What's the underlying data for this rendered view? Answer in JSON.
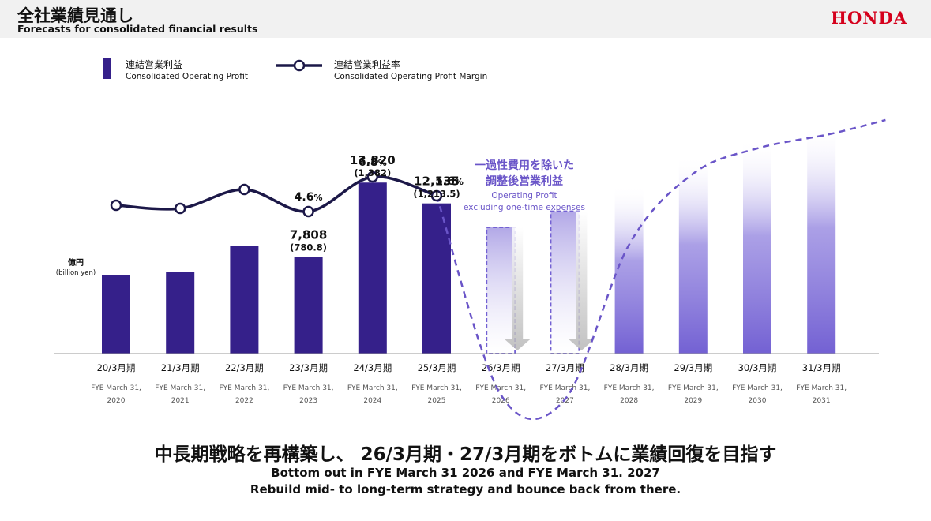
{
  "header": {
    "title_ja": "全社業績見通し",
    "title_en": "Forecasts for consolidated financial results",
    "logo": "HONDA"
  },
  "colors": {
    "bar_actual": "#35208a",
    "bar_future": "#7361d3",
    "line": "#1c1848",
    "annotation": "#6a55c8",
    "logo": "#d5001c"
  },
  "chart_data": {
    "type": "bar",
    "title": "全社業績見通し",
    "unit_label": "億円",
    "unit_label_en": "(billion yen)",
    "legend": {
      "bar_label_ja": "連結営業利益",
      "bar_label_en": "Consolidated Operating Profit",
      "line_label_ja": "連結営業利益率",
      "line_label_en": "Consolidated Operating Profit Margin"
    },
    "categories": [
      {
        "ja": "20/3月期",
        "en1": "FYE March 31,",
        "en2": "2020"
      },
      {
        "ja": "21/3月期",
        "en1": "FYE March 31,",
        "en2": "2021"
      },
      {
        "ja": "22/3月期",
        "en1": "FYE March 31,",
        "en2": "2022"
      },
      {
        "ja": "23/3月期",
        "en1": "FYE March 31,",
        "en2": "2023"
      },
      {
        "ja": "24/3月期",
        "en1": "FYE March 31,",
        "en2": "2024"
      },
      {
        "ja": "25/3月期",
        "en1": "FYE March 31,",
        "en2": "2025"
      },
      {
        "ja": "26/3月期",
        "en1": "FYE March 31,",
        "en2": "2026"
      },
      {
        "ja": "27/3月期",
        "en1": "FYE March 31,",
        "en2": "2027"
      },
      {
        "ja": "28/3月期",
        "en1": "FYE March 31,",
        "en2": "2028"
      },
      {
        "ja": "29/3月期",
        "en1": "FYE March 31,",
        "en2": "2029"
      },
      {
        "ja": "30/3月期",
        "en1": "FYE March 31,",
        "en2": "2030"
      },
      {
        "ja": "31/3月期",
        "en1": "FYE March 31,",
        "en2": "2031"
      }
    ],
    "ylim": [
      0,
      19000
    ],
    "operating_profit": [
      6330,
      6600,
      8710,
      7808,
      13820,
      12135,
      10200,
      11500,
      13600,
      16000,
      17300,
      18500
    ],
    "bar_kinds": [
      "actual",
      "actual",
      "actual",
      "actual",
      "actual",
      "actual",
      "hollow",
      "hollow",
      "future",
      "future",
      "future",
      "future"
    ],
    "value_labels": [
      {
        "index": 3,
        "value": "7,808",
        "sub": "(780.8)"
      },
      {
        "index": 4,
        "value": "13,820",
        "sub": "(1,382)"
      },
      {
        "index": 5,
        "value": "12,135",
        "sub": "(1,213.5)"
      }
    ],
    "margin_series": {
      "name": "連結営業利益率",
      "ylim": [
        -8,
        12
      ],
      "actual": [
        5.0,
        4.8,
        6.0,
        4.6,
        6.8,
        5.6
      ],
      "projected": [
        5.6,
        -7.0,
        -7.3,
        2.5,
        7.0,
        8.6,
        9.5,
        10.4
      ],
      "labels": [
        {
          "index": 3,
          "text": "4.6",
          "suffix": "%"
        },
        {
          "index": 4,
          "text": "6.8",
          "suffix": "%"
        },
        {
          "index": 5,
          "text": "5.6",
          "suffix": "%"
        }
      ]
    },
    "annotation": {
      "ja1": "一過性費用を除いた",
      "ja2": "調整後営業利益",
      "en1": "Operating Profit",
      "en2": "excluding one-time expenses"
    }
  },
  "message": {
    "ja": "中長期戦略を再構築し、 26/3月期・27/3月期をボトムに業績回復を目指す",
    "en1": "Bottom out in FYE March 31 2026 and FYE March 31. 2027",
    "en2": "Rebuild mid- to long-term strategy and bounce back from there."
  }
}
